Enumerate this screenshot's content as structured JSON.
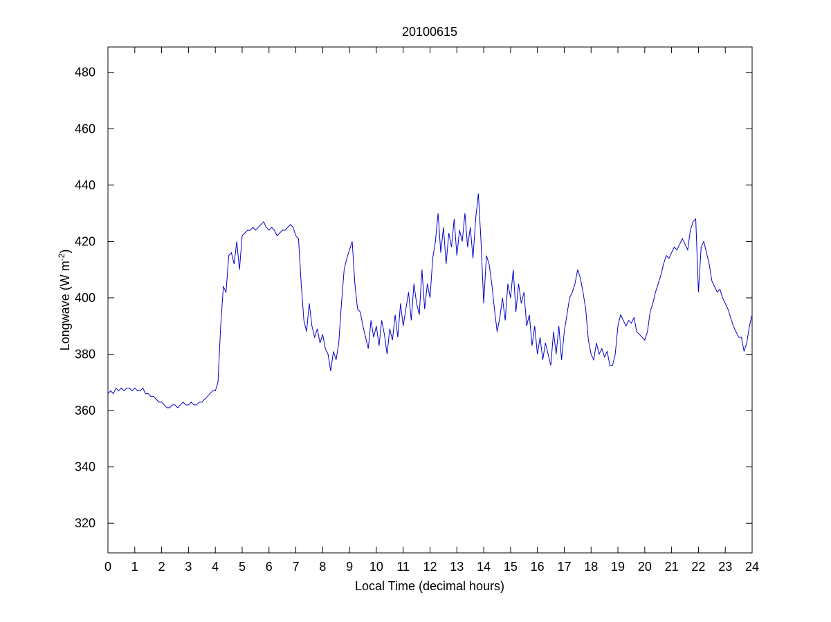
{
  "chart_data": {
    "type": "line",
    "title": "20100615",
    "xlabel": "Local Time (decimal hours)",
    "ylabel": [
      "Longwave (W m",
      "-2",
      ")"
    ],
    "color": "#0000cc",
    "x": [
      0,
      0.1,
      0.2,
      0.3,
      0.4,
      0.5,
      0.6,
      0.7,
      0.8,
      0.9,
      1,
      1.1,
      1.2,
      1.3,
      1.4,
      1.5,
      1.6,
      1.7,
      1.8,
      1.9,
      2,
      2.1,
      2.2,
      2.3,
      2.4,
      2.5,
      2.6,
      2.7,
      2.8,
      2.9,
      3,
      3.1,
      3.2,
      3.3,
      3.4,
      3.5,
      3.6,
      3.7,
      3.8,
      3.9,
      4,
      4.1,
      4.2,
      4.3,
      4.4,
      4.5,
      4.6,
      4.7,
      4.8,
      4.9,
      5,
      5.1,
      5.2,
      5.3,
      5.4,
      5.5,
      5.6,
      5.7,
      5.8,
      5.9,
      6,
      6.1,
      6.2,
      6.3,
      6.4,
      6.5,
      6.6,
      6.7,
      6.8,
      6.9,
      7,
      7.1,
      7.2,
      7.3,
      7.4,
      7.5,
      7.6,
      7.7,
      7.8,
      7.9,
      8,
      8.1,
      8.2,
      8.3,
      8.4,
      8.5,
      8.6,
      8.7,
      8.8,
      8.9,
      9,
      9.1,
      9.2,
      9.3,
      9.4,
      9.5,
      9.6,
      9.7,
      9.8,
      9.9,
      10,
      10.1,
      10.2,
      10.3,
      10.4,
      10.5,
      10.6,
      10.7,
      10.8,
      10.9,
      11,
      11.1,
      11.2,
      11.3,
      11.4,
      11.5,
      11.6,
      11.7,
      11.8,
      11.9,
      12,
      12.1,
      12.2,
      12.3,
      12.4,
      12.5,
      12.6,
      12.7,
      12.8,
      12.9,
      13,
      13.1,
      13.2,
      13.3,
      13.4,
      13.5,
      13.6,
      13.7,
      13.8,
      13.9,
      14,
      14.1,
      14.2,
      14.3,
      14.4,
      14.5,
      14.6,
      14.7,
      14.8,
      14.9,
      15,
      15.1,
      15.2,
      15.3,
      15.4,
      15.5,
      15.6,
      15.7,
      15.8,
      15.9,
      16,
      16.1,
      16.2,
      16.3,
      16.4,
      16.5,
      16.6,
      16.7,
      16.8,
      16.9,
      17,
      17.1,
      17.2,
      17.3,
      17.4,
      17.5,
      17.6,
      17.7,
      17.8,
      17.9,
      18,
      18.1,
      18.2,
      18.3,
      18.4,
      18.5,
      18.6,
      18.7,
      18.8,
      18.9,
      19,
      19.1,
      19.2,
      19.3,
      19.4,
      19.5,
      19.6,
      19.7,
      19.8,
      19.9,
      20,
      20.1,
      20.2,
      20.3,
      20.4,
      20.5,
      20.6,
      20.7,
      20.8,
      20.9,
      21,
      21.1,
      21.2,
      21.3,
      21.4,
      21.5,
      21.6,
      21.7,
      21.8,
      21.9,
      22,
      22.1,
      22.2,
      22.3,
      22.4,
      22.5,
      22.6,
      22.7,
      22.8,
      22.9,
      23,
      23.1,
      23.2,
      23.3,
      23.4,
      23.5,
      23.6,
      23.7,
      23.8,
      23.9,
      24
    ],
    "values": [
      366,
      367,
      366,
      368,
      367,
      368,
      367,
      368,
      368,
      367,
      368,
      367,
      367,
      368,
      366,
      366,
      365,
      365,
      364,
      363,
      363,
      362,
      361,
      361,
      362,
      362,
      361,
      362,
      363,
      362,
      362,
      363,
      362,
      362,
      363,
      363,
      364,
      365,
      366,
      367,
      367,
      370,
      390,
      404,
      402,
      415,
      416,
      412,
      420,
      410,
      422,
      423,
      424,
      424,
      425,
      424,
      425,
      426,
      427,
      425,
      424,
      425,
      424,
      422,
      423,
      424,
      424,
      425,
      426,
      425,
      422,
      421,
      405,
      392,
      388,
      398,
      390,
      386,
      389,
      384,
      387,
      382,
      380,
      374,
      381,
      378,
      384,
      398,
      410,
      414,
      417,
      420,
      405,
      396,
      395,
      390,
      386,
      382,
      392,
      386,
      390,
      383,
      392,
      387,
      380,
      389,
      385,
      394,
      386,
      398,
      390,
      396,
      402,
      392,
      405,
      398,
      394,
      410,
      396,
      405,
      400,
      414,
      420,
      430,
      416,
      425,
      412,
      423,
      418,
      428,
      415,
      424,
      420,
      430,
      418,
      425,
      414,
      428,
      437,
      420,
      398,
      415,
      412,
      405,
      396,
      388,
      393,
      400,
      392,
      405,
      400,
      410,
      395,
      405,
      398,
      402,
      390,
      394,
      383,
      390,
      380,
      386,
      378,
      384,
      380,
      376,
      388,
      380,
      390,
      378,
      388,
      394,
      400,
      402,
      405,
      410,
      407,
      402,
      396,
      385,
      380,
      378,
      384,
      380,
      382,
      379,
      381,
      376,
      376,
      380,
      390,
      394,
      392,
      390,
      392,
      391,
      393,
      388,
      387,
      386,
      385,
      388,
      395,
      398,
      402,
      405,
      408,
      412,
      415,
      414,
      416,
      418,
      417,
      419,
      421,
      419,
      417,
      424,
      427,
      428,
      402,
      418,
      420,
      416,
      412,
      406,
      404,
      402,
      403,
      400,
      398,
      396,
      393,
      390,
      388,
      386,
      386,
      381,
      384,
      390,
      394
    ],
    "xlim": [
      0,
      24
    ],
    "ylim": [
      309.5,
      489
    ],
    "xticks": [
      0,
      1,
      2,
      3,
      4,
      5,
      6,
      7,
      8,
      9,
      10,
      11,
      12,
      13,
      14,
      15,
      16,
      17,
      18,
      19,
      20,
      21,
      22,
      23,
      24
    ],
    "yticks": [
      320,
      340,
      360,
      380,
      400,
      420,
      440,
      460,
      480
    ]
  }
}
